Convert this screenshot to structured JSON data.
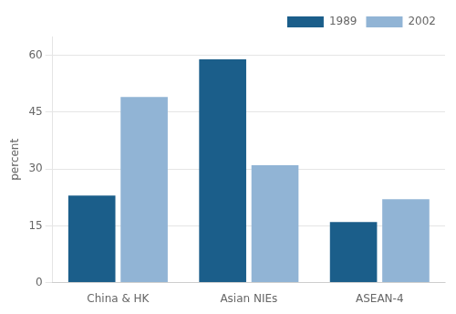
{
  "chart_data": {
    "type": "bar",
    "categories": [
      "China & HK",
      "Asian NIEs",
      "ASEAN-4"
    ],
    "series": [
      {
        "name": "1989",
        "color": "#1b5e8a",
        "values": [
          23,
          59,
          16
        ]
      },
      {
        "name": "2002",
        "color": "#91b4d5",
        "values": [
          49,
          31,
          22
        ]
      }
    ],
    "ylabel": "percent",
    "ylim": [
      0,
      65
    ],
    "yticks": [
      0,
      15,
      30,
      45,
      60
    ],
    "grid": true,
    "legend": "upper right"
  }
}
